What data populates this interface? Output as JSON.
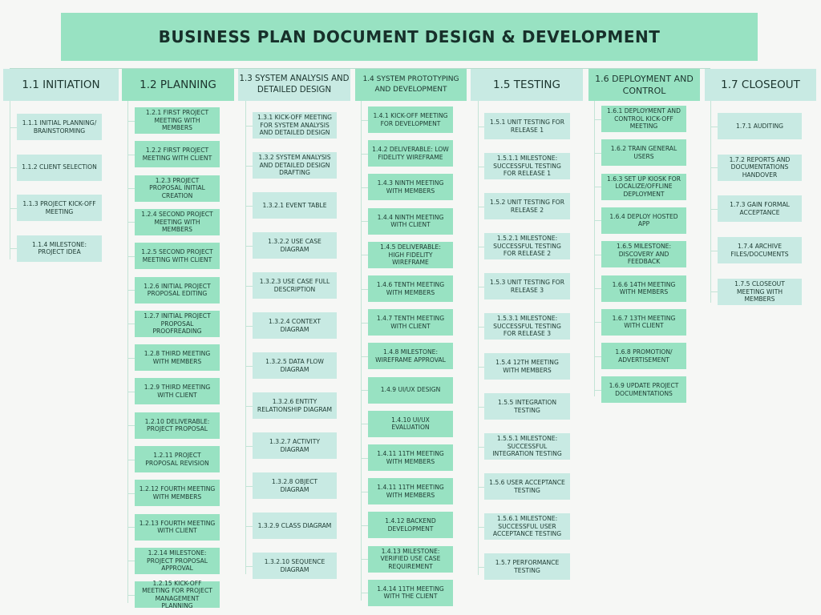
{
  "diagram": {
    "title": "BUSINESS PLAN DOCUMENT DESIGN & DEVELOPMENT",
    "colors": {
      "dark_box": "#98e2c2",
      "light_box": "#c8eae3",
      "connector": "#c3e4d6",
      "background": "#f6f7f5"
    },
    "phases": [
      {
        "id": "p1",
        "tone": "light",
        "label": "1.1 INITIATION",
        "tasks": [
          "1.1.1 INITIAL PLANNING/ BRAINSTORMING",
          "1.1.2 CLIENT SELECTION",
          "1.1.3 PROJECT KICK-OFF MEETING",
          "1.1.4 MILESTONE: PROJECT IDEA"
        ]
      },
      {
        "id": "p2",
        "tone": "dark",
        "label": "1.2 PLANNING",
        "tasks": [
          "1.2.1 FIRST PROJECT MEETING WITH MEMBERS",
          "1.2.2 FIRST PROJECT MEETING WITH CLIENT",
          "1.2.3 PROJECT PROPOSAL INITIAL CREATION",
          "1.2.4 SECOND PROJECT MEETING WITH MEMBERS",
          "1.2.5 SECOND PROJECT MEETING WITH CLIENT",
          "1.2.6 INITIAL PROJECT PROPOSAL EDITING",
          "1.2.7 INITIAL PROJECT PROPOSAL PROOFREADING",
          "1.2.8 THIRD MEETING WITH MEMBERS",
          "1.2.9 THIRD MEETING WITH CLIENT",
          "1.2.10 DELIVERABLE: PROJECT PROPOSAL",
          "1.2.11 PROJECT PROPOSAL REVISION",
          "1.2.12 FOURTH MEETING WITH MEMBERS",
          "1.2.13 FOURTH MEETING WITH CLIENT",
          "1.2.14 MILESTONE: PROJECT PROPOSAL APPROVAL",
          "1.2.15 KICK-OFF MEETING FOR PROJECT MANAGEMENT PLANNING"
        ]
      },
      {
        "id": "p3",
        "tone": "light",
        "label": "1.3 SYSTEM ANALYSIS AND DETAILED DESIGN",
        "tasks": [
          "1.3.1 KICK-OFF MEETING FOR SYSTEM ANALYSIS AND DETAILED DESIGN",
          "1.3.2 SYSTEM ANALYSIS AND DETAILED DESIGN DRAFTING",
          "1.3.2.1 EVENT TABLE",
          "1.3.2.2 USE CASE DIAGRAM",
          "1.3.2.3 USE CASE FULL DESCRIPTION",
          "1.3.2.4 CONTEXT DIAGRAM",
          "1.3.2.5 DATA FLOW DIAGRAM",
          "1.3.2.6 ENTITY RELATIONSHIP DIAGRAM",
          "1.3.2.7 ACTIVITY DIAGRAM",
          "1.3.2.8 OBJECT DIAGRAM",
          "1.3.2.9 CLASS DIAGRAM",
          "1.3.2.10 SEQUENCE DIAGRAM"
        ]
      },
      {
        "id": "p4",
        "tone": "dark",
        "label": "1.4 SYSTEM PROTOTYPING AND DEVELOPMENT",
        "tasks": [
          "1.4.1 KICK-OFF MEETING FOR DEVELOPMENT",
          "1.4.2 DELIVERABLE: LOW FIDELITY WIREFRAME",
          "1.4.3 NINTH MEETING WITH MEMBERS",
          "1.4.4 NINTH MEETING WITH CLIENT",
          "1.4.5 DELIVERABLE: HIGH FIDELITY WIREFRAME",
          "1.4.6 TENTH MEETING WITH MEMBERS",
          "1.4.7 TENTH MEETING WITH CLIENT",
          "1.4.8 MILESTONE: WIREFRAME APPROVAL",
          "1.4.9 UI/UX DESIGN",
          "1.4.10 UI/UX EVALUATION",
          "1.4.11 11TH MEETING WITH MEMBERS",
          "1.4.11 11TH MEETING WITH MEMBERS",
          "1.4.12 BACKEND DEVELOPMENT",
          "1.4.13 MILESTONE: VERIFIED USE CASE REQUIREMENT",
          "1.4.14 11TH MEETING WITH THE CLIENT"
        ]
      },
      {
        "id": "p5",
        "tone": "light",
        "label": "1.5 TESTING",
        "tasks": [
          "1.5.1 UNIT TESTING FOR RELEASE 1",
          "1.5.1.1 MILESTONE: SUCCESSFUL TESTING FOR RELEASE 1",
          "1.5.2 UNIT TESTING FOR RELEASE 2",
          "1.5.2.1 MILESTONE: SUCCESSFUL TESTING FOR RELEASE 2",
          "1.5.3 UNIT TESTING FOR RELEASE 3",
          "1.5.3.1 MILESTONE: SUCCESSFUL TESTING FOR RELEASE 3",
          "1.5.4 12TH MEETING WITH MEMBERS",
          "1.5.5 INTEGRATION TESTING",
          "1.5.5.1 MILESTONE: SUCCESSFUL INTEGRATION TESTING",
          "1.5.6 USER ACCEPTANCE TESTING",
          "1.5.6.1 MILESTONE: SUCCESSFUL USER ACCEPTANCE TESTING",
          "1.5.7 PERFORMANCE TESTING"
        ]
      },
      {
        "id": "p6",
        "tone": "dark",
        "label": "1.6 DEPLOYMENT AND CONTROL",
        "tasks": [
          "1.6.1 DEPLOYMENT AND CONTROL KICK-OFF MEETING",
          "1.6.2 TRAIN GENERAL USERS",
          "1.6.3 SET UP KIOSK FOR LOCALIZE/OFFLINE DEPLOYMENT",
          "1.6.4 DEPLOY HOSTED APP",
          "1.6.5 MILESTONE: DISCOVERY AND FEEDBACK",
          "1.6.6 14TH MEETING WITH MEMBERS",
          "1.6.7 13TH MEETING WITH CLIENT",
          "1.6.8 PROMOTION/ ADVERTISEMENT",
          "1.6.9 UPDATE PROJECT DOCUMENTATIONS"
        ]
      },
      {
        "id": "p7",
        "tone": "light",
        "label": "1.7 CLOSEOUT",
        "tasks": [
          "1.7.1 AUDITING",
          "1.7.2 REPORTS AND DOCUMENTATIONS HANDOVER",
          "1.7.3 GAIN FORMAL ACCEPTANCE",
          "1.7.4 ARCHIVE FILES/DOCUMENTS",
          "1.7.5 CLOSEOUT MEETING WITH MEMBERS"
        ]
      }
    ]
  }
}
